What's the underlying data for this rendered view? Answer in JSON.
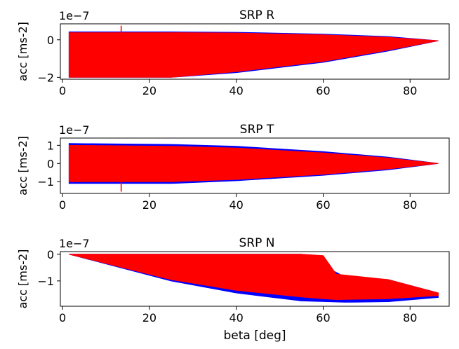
{
  "colors": {
    "envelope": "#0000ff",
    "fill": "#ff0000",
    "axes": "#000000",
    "background": "#ffffff"
  },
  "chart_data": [
    {
      "type": "area",
      "title": "SRP R",
      "ylabel": "acc [ms-2]",
      "xlabel": "",
      "exponent_label": "1e−7",
      "xlim": [
        -0.5,
        89
      ],
      "ylim": [
        -2.1,
        0.85
      ],
      "xticks": [
        0,
        20,
        40,
        60,
        80
      ],
      "yticks": [
        0,
        -2
      ],
      "ytick_labels": [
        "0",
        "−2"
      ],
      "series": [
        {
          "color": "#0000ff",
          "x": [
            1.5,
            25,
            40,
            60,
            75,
            86.5
          ],
          "upper": [
            0.42,
            0.42,
            0.4,
            0.3,
            0.17,
            -0.05
          ],
          "lower": [
            -2.0,
            -2.0,
            -1.75,
            -1.2,
            -0.6,
            -0.05
          ]
        },
        {
          "color": "#ff0000",
          "x": [
            1.5,
            25,
            40,
            60,
            75,
            86.5
          ],
          "upper": [
            0.38,
            0.38,
            0.36,
            0.26,
            0.13,
            -0.05
          ],
          "lower": [
            -2.0,
            -2.0,
            -1.7,
            -1.15,
            -0.55,
            -0.05
          ]
        }
      ],
      "spikes": [
        {
          "x": 13.5,
          "y": 0.75
        }
      ],
      "grid": false
    },
    {
      "type": "area",
      "title": "SRP T",
      "ylabel": "acc [ms-2]",
      "xlabel": "",
      "exponent_label": "1e−7",
      "xlim": [
        -0.5,
        89
      ],
      "ylim": [
        -1.65,
        1.4
      ],
      "xticks": [
        0,
        20,
        40,
        60,
        80
      ],
      "yticks": [
        1,
        0,
        -1
      ],
      "ytick_labels": [
        "1",
        "0",
        "−1"
      ],
      "series": [
        {
          "color": "#0000ff",
          "x": [
            1.5,
            25,
            40,
            60,
            75,
            86.5
          ],
          "upper": [
            1.1,
            1.05,
            0.95,
            0.65,
            0.35,
            0.0
          ],
          "lower": [
            -1.1,
            -1.1,
            -0.95,
            -0.65,
            -0.35,
            0.0
          ]
        },
        {
          "color": "#ff0000",
          "x": [
            1.5,
            25,
            40,
            60,
            75,
            86.5
          ],
          "upper": [
            1.0,
            0.95,
            0.85,
            0.58,
            0.3,
            0.0
          ],
          "lower": [
            -1.0,
            -1.0,
            -0.88,
            -0.6,
            -0.3,
            0.0
          ]
        }
      ],
      "spikes": [
        {
          "x": 13.5,
          "y": -1.55
        }
      ],
      "grid": false
    },
    {
      "type": "area",
      "title": "SRP N",
      "ylabel": "acc [ms-2]",
      "xlabel": "beta [deg]",
      "exponent_label": "1e−7",
      "xlim": [
        -0.5,
        89
      ],
      "ylim": [
        -1.95,
        0.1
      ],
      "xticks": [
        0,
        20,
        40,
        60,
        80
      ],
      "yticks": [
        0,
        -1
      ],
      "ytick_labels": [
        "0",
        "−1"
      ],
      "series": [
        {
          "color": "#0000ff",
          "x": [
            1.5,
            25,
            40,
            55,
            65,
            75,
            86.5
          ],
          "upper": [
            0.0,
            0.0,
            0.0,
            0.0,
            -0.85,
            -0.95,
            -1.45
          ],
          "lower": [
            0.0,
            -1.0,
            -1.45,
            -1.75,
            -1.8,
            -1.78,
            -1.62
          ]
        },
        {
          "color": "#ff0000",
          "x": [
            1.5,
            25,
            40,
            55,
            60,
            63,
            75,
            86.5
          ],
          "upper": [
            0.0,
            0.0,
            0.0,
            0.0,
            -0.05,
            -0.75,
            -0.95,
            -1.45
          ],
          "lower": [
            0.0,
            -0.95,
            -1.35,
            -1.6,
            -1.67,
            -1.7,
            -1.67,
            -1.55
          ]
        }
      ],
      "spikes": [],
      "grid": false
    }
  ]
}
